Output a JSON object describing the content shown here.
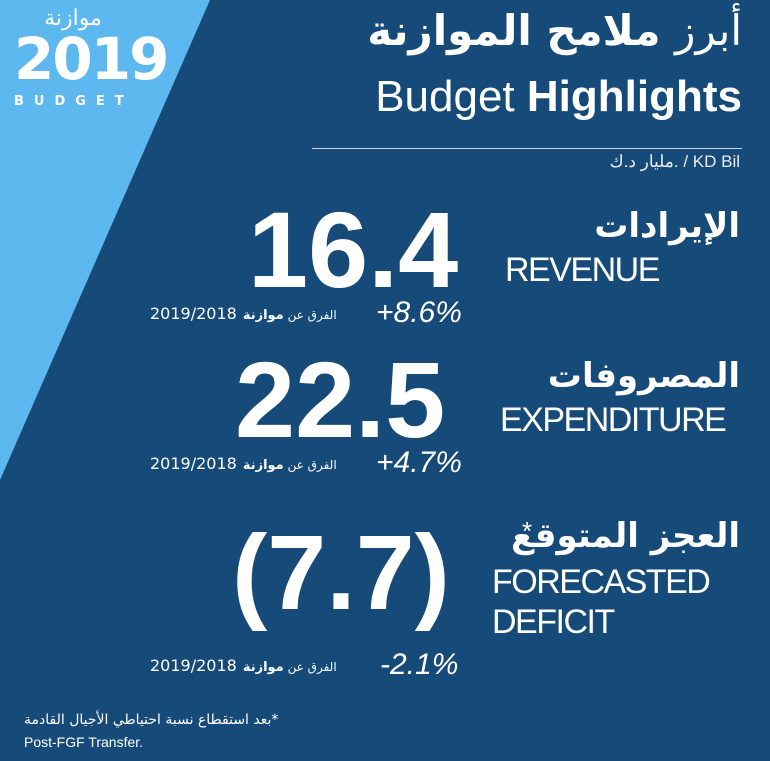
{
  "logo": {
    "arabic": "موازنة",
    "year": "2019",
    "english": "BUDGET"
  },
  "header": {
    "title_ar_prefix": "أبرز",
    "title_ar_main": "ملامح الموازنة",
    "title_en_light": "Budget",
    "title_en_bold": "Highlights",
    "units": "مليار د.ك. / KD Bil"
  },
  "metrics": [
    {
      "value": "16.4",
      "label_ar": "الإيرادات",
      "label_en": "REVENUE",
      "change": "+8.6%",
      "compare_year": "2019/2018",
      "compare_prefix": "الفرق عن",
      "compare_bold": "موازنة"
    },
    {
      "value": "22.5",
      "label_ar": "المصروفات",
      "label_en": "EXPENDITURE",
      "change": "+4.7%",
      "compare_year": "2019/2018",
      "compare_prefix": "الفرق عن",
      "compare_bold": "موازنة"
    },
    {
      "value": "(7.7)",
      "label_ar": "العجز المتوقع",
      "label_en_line1": "FORECASTED",
      "label_en_line2": "DEFICIT",
      "asterisk": "*",
      "change": "-2.1%",
      "compare_year": "2019/2018",
      "compare_prefix": "الفرق عن",
      "compare_bold": "موازنة"
    }
  ],
  "footnote": {
    "arabic": "*بعد استقطاع نسبة احتياطي الأجيال القادمة",
    "english": "Post-FGF Transfer."
  },
  "colors": {
    "background": "#164a78",
    "accent_light_blue": "#5cb8ee",
    "text": "#ffffff"
  }
}
